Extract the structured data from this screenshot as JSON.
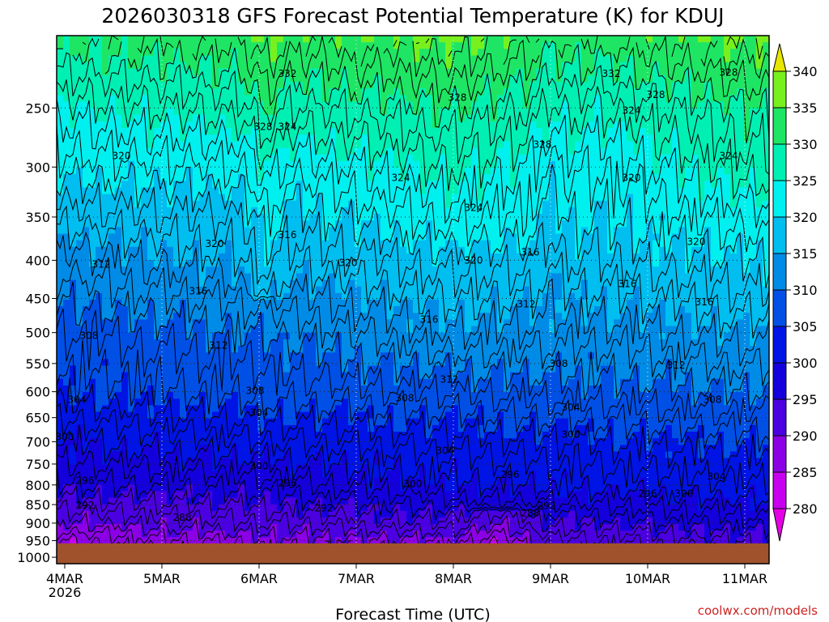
{
  "chart_data": {
    "type": "heatmap",
    "title": "2026030318 GFS Forecast Potential Temperature (K) for KDUJ",
    "xlabel": "Forecast Time (UTC)",
    "ylabel": "",
    "credit": "coolwx.com/models",
    "x_ticks": [
      {
        "label": "4MAR",
        "sub": "2026",
        "hour": 0
      },
      {
        "label": "5MAR",
        "sub": "",
        "hour": 24
      },
      {
        "label": "6MAR",
        "sub": "",
        "hour": 48
      },
      {
        "label": "7MAR",
        "sub": "",
        "hour": 72
      },
      {
        "label": "8MAR",
        "sub": "",
        "hour": 96
      },
      {
        "label": "9MAR",
        "sub": "",
        "hour": 120
      },
      {
        "label": "10MAR",
        "sub": "",
        "hour": 144
      },
      {
        "label": "11MAR",
        "sub": "",
        "hour": 168
      }
    ],
    "xlim_hours": [
      -2,
      174
    ],
    "y_ticks_hpa": [
      250,
      300,
      350,
      400,
      450,
      500,
      550,
      600,
      650,
      700,
      750,
      800,
      850,
      900,
      950,
      1000
    ],
    "ylim_hpa": [
      200,
      1020
    ],
    "ground_level_hpa": 958,
    "colorbar": {
      "levels": [
        280,
        285,
        290,
        295,
        300,
        305,
        310,
        315,
        320,
        325,
        330,
        335,
        340
      ],
      "colors": [
        "#c800f0",
        "#8c00e6",
        "#4b00e1",
        "#1400dc",
        "#0014e6",
        "#0050e6",
        "#008ce6",
        "#00bef0",
        "#00f0f0",
        "#00f0b4",
        "#1ee664",
        "#78f01e",
        "#c8f500"
      ],
      "under_color": "#e600e6",
      "over_color": "#e6e600"
    },
    "contour_interval_K": 2,
    "time_hours": [
      0,
      12,
      24,
      36,
      48,
      60,
      72,
      84,
      96,
      108,
      120,
      132,
      144,
      156,
      168
    ],
    "pressure_hpa": [
      250,
      300,
      350,
      400,
      450,
      500,
      550,
      600,
      650,
      700,
      750,
      800,
      850,
      900,
      950
    ],
    "theta_K": [
      [
        331,
        319,
        305,
        297,
        290,
        282
      ],
      [
        330,
        318,
        304,
        296,
        289,
        281
      ]
    ],
    "profile_anchors": [
      {
        "hour": 0,
        "theta": {
          "250": 325,
          "300": 321,
          "350": 317,
          "400": 313,
          "500": 308,
          "600": 305,
          "700": 300,
          "800": 296,
          "900": 290,
          "950": 286
        }
      },
      {
        "hour": 48,
        "theta": {
          "250": 327,
          "300": 322,
          "350": 318,
          "400": 316,
          "500": 310,
          "600": 307,
          "700": 302,
          "800": 297,
          "900": 292,
          "950": 289
        }
      },
      {
        "hour": 96,
        "theta": {
          "250": 330,
          "300": 326,
          "350": 323,
          "400": 319,
          "500": 314,
          "600": 308,
          "700": 303,
          "800": 300,
          "900": 294,
          "950": 290
        }
      },
      {
        "hour": 132,
        "theta": {
          "250": 326,
          "300": 322,
          "350": 320,
          "400": 318,
          "500": 313,
          "600": 309,
          "700": 304,
          "800": 301,
          "900": 295,
          "950": 292
        }
      },
      {
        "hour": 168,
        "theta": {
          "250": 330,
          "300": 327,
          "350": 323,
          "400": 320,
          "500": 315,
          "600": 310,
          "700": 305,
          "800": 302,
          "900": 297,
          "950": 294
        }
      }
    ],
    "contour_labels": [
      {
        "text": "332",
        "hour": 55,
        "hpa": 225
      },
      {
        "text": "332",
        "hour": 135,
        "hpa": 225
      },
      {
        "text": "328",
        "hour": 164,
        "hpa": 224
      },
      {
        "text": "328",
        "hour": 97,
        "hpa": 242
      },
      {
        "text": "328",
        "hour": 146,
        "hpa": 240
      },
      {
        "text": "324",
        "hour": 140,
        "hpa": 252
      },
      {
        "text": "328",
        "hour": 49,
        "hpa": 265
      },
      {
        "text": "324",
        "hour": 55,
        "hpa": 265
      },
      {
        "text": "328",
        "hour": 118,
        "hpa": 280
      },
      {
        "text": "320",
        "hour": 14,
        "hpa": 290
      },
      {
        "text": "324",
        "hour": 164,
        "hpa": 290
      },
      {
        "text": "324",
        "hour": 83,
        "hpa": 310
      },
      {
        "text": "320",
        "hour": 140,
        "hpa": 310
      },
      {
        "text": "324",
        "hour": 101,
        "hpa": 340
      },
      {
        "text": "316",
        "hour": -3,
        "hpa": 352
      },
      {
        "text": "316",
        "hour": 55,
        "hpa": 370
      },
      {
        "text": "320",
        "hour": 37,
        "hpa": 380
      },
      {
        "text": "320",
        "hour": 156,
        "hpa": 378
      },
      {
        "text": "316",
        "hour": 115,
        "hpa": 390
      },
      {
        "text": "320",
        "hour": 70,
        "hpa": 403
      },
      {
        "text": "320",
        "hour": 101,
        "hpa": 400
      },
      {
        "text": "312",
        "hour": 9,
        "hpa": 405
      },
      {
        "text": "316",
        "hour": 139,
        "hpa": 430
      },
      {
        "text": "316",
        "hour": 33,
        "hpa": 440
      },
      {
        "text": "312",
        "hour": 114,
        "hpa": 458
      },
      {
        "text": "316",
        "hour": 158,
        "hpa": 455
      },
      {
        "text": "316",
        "hour": 90,
        "hpa": 480
      },
      {
        "text": "308",
        "hour": 6,
        "hpa": 505
      },
      {
        "text": "312",
        "hour": 38,
        "hpa": 520
      },
      {
        "text": "308",
        "hour": 122,
        "hpa": 550
      },
      {
        "text": "312",
        "hour": 151,
        "hpa": 553
      },
      {
        "text": "312",
        "hour": 95,
        "hpa": 578
      },
      {
        "text": "308",
        "hour": 47,
        "hpa": 598
      },
      {
        "text": "308",
        "hour": 84,
        "hpa": 612
      },
      {
        "text": "304",
        "hour": 3,
        "hpa": 615
      },
      {
        "text": "308",
        "hour": 160,
        "hpa": 615
      },
      {
        "text": "304",
        "hour": 125,
        "hpa": 630
      },
      {
        "text": "304",
        "hour": 48,
        "hpa": 640
      },
      {
        "text": "300",
        "hour": 0,
        "hpa": 690
      },
      {
        "text": "300",
        "hour": 125,
        "hpa": 685
      },
      {
        "text": "304",
        "hour": 94,
        "hpa": 720
      },
      {
        "text": "300",
        "hour": 48,
        "hpa": 755
      },
      {
        "text": "304",
        "hour": 161,
        "hpa": 780
      },
      {
        "text": "296",
        "hour": 5,
        "hpa": 790
      },
      {
        "text": "296",
        "hour": 55,
        "hpa": 795
      },
      {
        "text": "300",
        "hour": 86,
        "hpa": 797
      },
      {
        "text": "296",
        "hour": 110,
        "hpa": 775
      },
      {
        "text": "296",
        "hour": 144,
        "hpa": 822
      },
      {
        "text": "300",
        "hour": 153,
        "hpa": 822
      },
      {
        "text": "292",
        "hour": 5,
        "hpa": 852
      },
      {
        "text": "292",
        "hour": 64,
        "hpa": 860
      },
      {
        "text": "292",
        "hour": 119,
        "hpa": 853
      },
      {
        "text": "288",
        "hour": 29,
        "hpa": 885
      },
      {
        "text": "288",
        "hour": 115,
        "hpa": 872
      }
    ]
  }
}
